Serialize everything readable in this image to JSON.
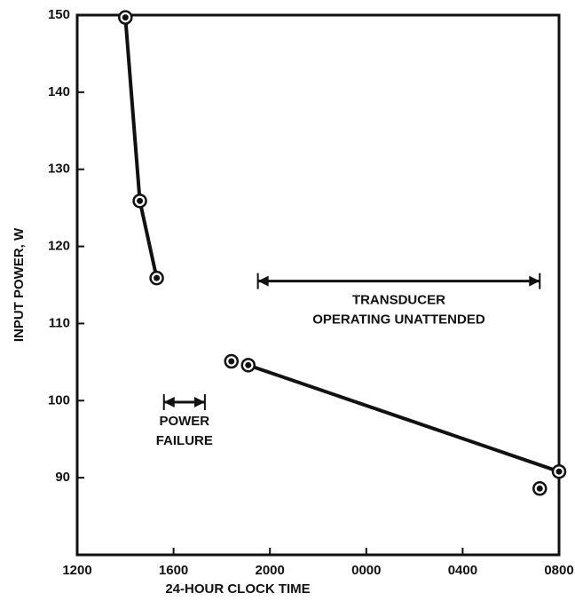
{
  "chart_data": {
    "type": "line",
    "x_label": "24-HOUR CLOCK TIME",
    "y_label": "INPUT POWER, W",
    "xlim": [
      0,
      20
    ],
    "xticks": [
      {
        "value": 0,
        "label": "1200"
      },
      {
        "value": 4,
        "label": "1600"
      },
      {
        "value": 8,
        "label": "2000"
      },
      {
        "value": 12,
        "label": "0000"
      },
      {
        "value": 16,
        "label": "0400"
      },
      {
        "value": 20,
        "label": "0800"
      }
    ],
    "ylim": [
      80,
      150
    ],
    "yticks": [
      90,
      100,
      110,
      120,
      130,
      140,
      150
    ],
    "series": [
      {
        "color": "#111111",
        "x": [
          2.0,
          2.6,
          3.3
        ],
        "values": [
          149.7,
          125.9,
          115.9
        ]
      },
      {
        "color": "#111111",
        "x": [
          6.4
        ],
        "values": [
          105.1
        ]
      },
      {
        "color": "#111111",
        "x": [
          7.1,
          20.0
        ],
        "values": [
          104.6,
          90.8
        ]
      },
      {
        "color": "#111111",
        "x": [
          19.2
        ],
        "values": [
          88.6
        ]
      }
    ],
    "annotations": [
      {
        "lines": [
          "TRANSDUCER",
          "OPERATING UNATTENDED"
        ],
        "x_start": 7.5,
        "x_end": 19.2,
        "y": 115.5
      },
      {
        "lines": [
          "POWER",
          "FAILURE"
        ],
        "x_start": 3.6,
        "x_end": 5.3,
        "y": 99.8
      }
    ]
  }
}
